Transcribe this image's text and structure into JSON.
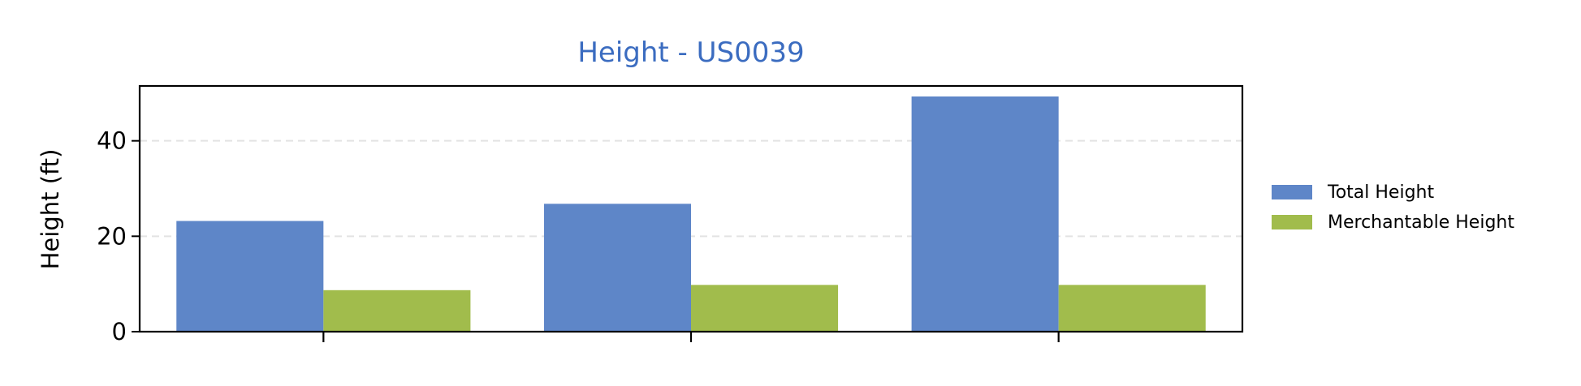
{
  "chart_data": {
    "type": "bar",
    "title": "Height - US0039",
    "xlabel": "",
    "ylabel": "Height (ft)",
    "categories": [
      "",
      "",
      ""
    ],
    "ylim": [
      0,
      51.5
    ],
    "yticks": [
      0,
      20,
      40
    ],
    "ytick_labels": [
      "0",
      "20",
      "40"
    ],
    "grid": "y-dashed",
    "legend_position": "right",
    "series": [
      {
        "name": "Total Height",
        "color": "#5e86c8",
        "values": [
          23.2,
          26.8,
          49.3
        ]
      },
      {
        "name": "Merchantable Height",
        "color": "#a1bc4c",
        "values": [
          8.7,
          9.8,
          9.8
        ]
      }
    ],
    "title_color": "#3b6cc0"
  }
}
